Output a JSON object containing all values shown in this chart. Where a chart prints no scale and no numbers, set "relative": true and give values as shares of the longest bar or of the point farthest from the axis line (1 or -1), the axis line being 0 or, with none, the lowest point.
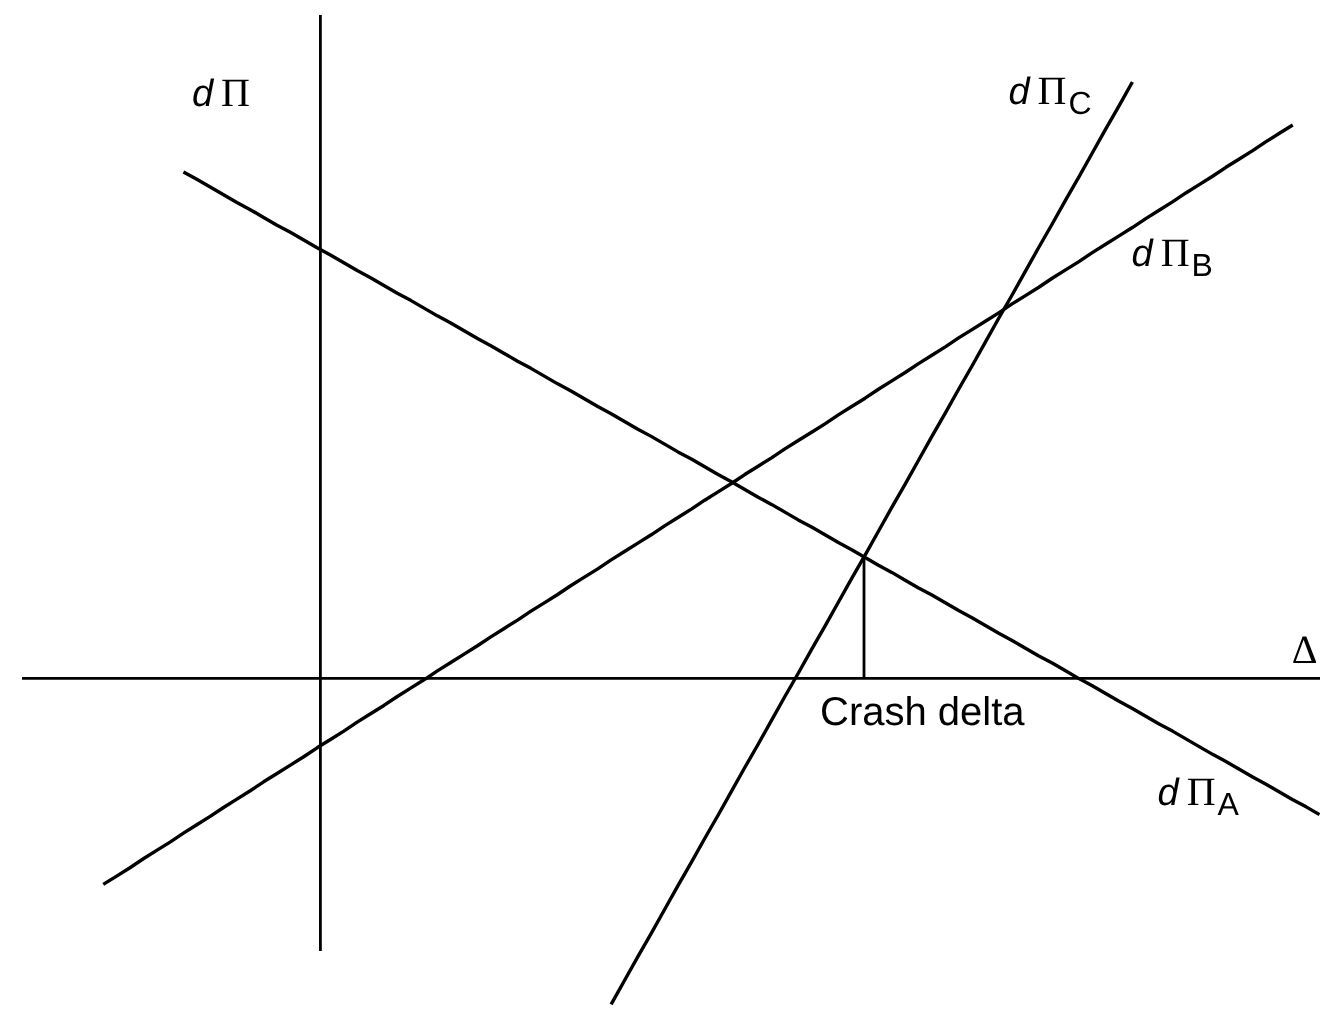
{
  "chart_data": {
    "type": "line",
    "relative": true,
    "tick_labels": false,
    "marker": "none",
    "xlabel": "Δ",
    "ylabel": "dΠ",
    "categories": [
      null,
      null,
      null,
      null,
      null,
      null,
      null,
      null,
      null,
      null,
      null,
      null,
      null,
      null,
      null,
      null,
      null,
      null,
      null,
      null,
      null,
      null,
      null,
      null,
      null,
      null,
      null,
      null,
      null,
      null,
      null,
      null,
      null,
      null,
      null,
      null,
      null,
      null,
      null,
      null,
      null,
      null,
      null,
      null,
      null,
      null,
      null,
      null,
      null,
      null,
      null,
      null,
      null,
      null,
      null,
      null,
      null,
      null,
      null,
      null,
      null,
      null,
      null,
      null,
      null,
      null,
      null,
      null,
      null,
      null,
      null,
      null,
      null,
      null,
      null,
      null,
      null,
      null,
      null,
      null,
      null,
      null,
      null,
      null,
      null,
      null,
      null,
      null,
      null,
      null,
      null,
      null,
      null,
      null,
      null,
      null,
      null,
      null
    ],
    "series": [
      {
        "name": "dΠ$_{A}$",
        "color": "#000000",
        "values": [
          null,
          null,
          null,
          null,
          null,
          null,
          null,
          null,
          null,
          null,
          null,
          null,
          0.849,
          0.837,
          0.824,
          0.811,
          0.798,
          0.786,
          0.773,
          0.76,
          0.748,
          0.735,
          0.722,
          0.71,
          0.697,
          0.684,
          0.672,
          0.659,
          0.646,
          0.634,
          0.621,
          0.608,
          0.596,
          0.583,
          0.57,
          0.558,
          0.545,
          0.532,
          0.52,
          0.507,
          0.494,
          0.482,
          0.469,
          0.456,
          0.444,
          0.431,
          0.418,
          0.406,
          0.393,
          0.38,
          0.368,
          0.355,
          0.342,
          0.33,
          0.317,
          0.304,
          0.292,
          0.279,
          0.266,
          0.254,
          0.241,
          0.228,
          0.216,
          0.203,
          0.19,
          0.178,
          0.165,
          0.152,
          0.14,
          0.127,
          0.114,
          0.102,
          0.089,
          0.076,
          0.064,
          0.051,
          0.038,
          0.026,
          0.013,
          0,
          -0.012,
          -0.025,
          -0.038,
          -0.05,
          -0.063,
          -0.076,
          -0.088,
          -0.101,
          -0.114,
          -0.127,
          -0.139,
          -0.152,
          -0.165,
          -0.177,
          -0.19,
          -0.203,
          -0.215,
          -0.228
        ]
      },
      {
        "name": "dΠ$_{B}$",
        "color": "#000000",
        "values": [
          null,
          null,
          null,
          null,
          null,
          null,
          -0.345,
          -0.331,
          -0.317,
          -0.302,
          -0.288,
          -0.274,
          -0.259,
          -0.245,
          -0.231,
          -0.216,
          -0.202,
          -0.188,
          -0.173,
          -0.159,
          -0.145,
          -0.131,
          -0.116,
          -0.102,
          -0.088,
          -0.073,
          -0.059,
          -0.045,
          -0.03,
          -0.016,
          -0.002,
          0.013,
          0.027,
          0.041,
          0.055,
          0.07,
          0.084,
          0.098,
          0.113,
          0.127,
          0.141,
          0.156,
          0.17,
          0.184,
          0.199,
          0.213,
          0.227,
          0.241,
          0.256,
          0.27,
          0.284,
          0.299,
          0.313,
          0.327,
          0.342,
          0.356,
          0.37,
          0.385,
          0.399,
          0.413,
          0.427,
          0.442,
          0.456,
          0.47,
          0.485,
          0.499,
          0.513,
          0.528,
          0.542,
          0.556,
          0.571,
          0.585,
          0.599,
          0.613,
          0.628,
          0.642,
          0.656,
          0.671,
          0.685,
          0.699,
          0.714,
          0.728,
          0.742,
          0.756,
          0.771,
          0.785,
          0.799,
          0.814,
          0.828,
          0.842,
          0.857,
          0.871,
          0.885,
          0.9,
          0.914,
          0.928,
          null,
          null
        ]
      },
      {
        "name": "dΠ$_{C}$",
        "color": "#000000",
        "values": [
          null,
          null,
          null,
          null,
          null,
          null,
          null,
          null,
          null,
          null,
          null,
          null,
          null,
          null,
          null,
          null,
          null,
          null,
          null,
          null,
          null,
          null,
          null,
          null,
          null,
          null,
          null,
          null,
          null,
          null,
          null,
          null,
          null,
          null,
          null,
          null,
          null,
          null,
          null,
          null,
          null,
          null,
          null,
          null,
          -0.546,
          -0.506,
          -0.466,
          -0.427,
          -0.387,
          -0.347,
          -0.308,
          -0.268,
          -0.229,
          -0.189,
          -0.149,
          -0.11,
          -0.07,
          -0.03,
          0.009,
          0.049,
          0.088,
          0.128,
          0.168,
          0.207,
          0.247,
          0.287,
          0.326,
          0.366,
          0.406,
          0.445,
          0.485,
          0.524,
          0.564,
          0.604,
          0.643,
          0.683,
          0.723,
          0.762,
          0.802,
          0.841,
          0.881,
          0.921,
          0.96,
          1,
          null,
          null,
          null,
          null,
          null,
          null,
          null,
          null,
          null,
          null,
          null,
          null,
          null,
          null
        ]
      }
    ],
    "annotations": [
      "Crash delta"
    ]
  }
}
